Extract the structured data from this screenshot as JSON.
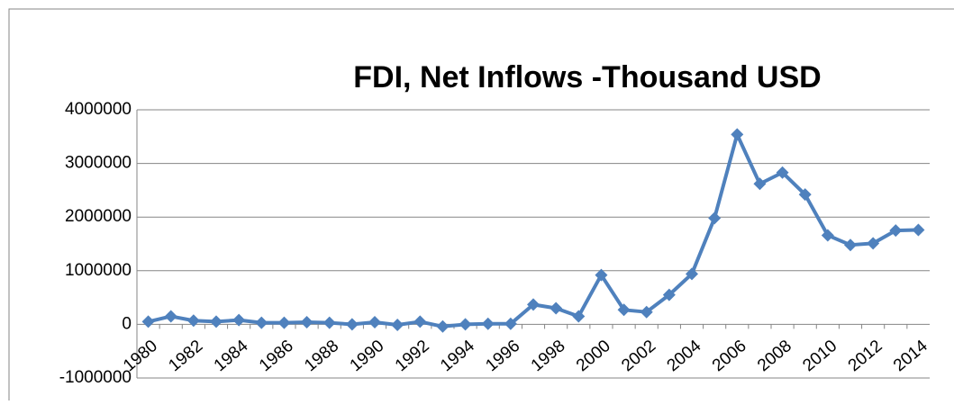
{
  "chart_data": {
    "type": "line",
    "title": "FDI, Net Inflows -Thousand USD",
    "categories": [
      "1980",
      null,
      "1982",
      null,
      "1984",
      null,
      "1986",
      null,
      "1988",
      null,
      "1990",
      null,
      "1992",
      null,
      "1994",
      null,
      "1996",
      null,
      "1998",
      null,
      "2000",
      null,
      "2002",
      null,
      "2004",
      null,
      "2006",
      null,
      "2008",
      null,
      "2010",
      null,
      "2012",
      null,
      "2014"
    ],
    "series": [
      {
        "color": "#4f81bd",
        "values": [
          50000,
          150000,
          70000,
          50000,
          80000,
          30000,
          30000,
          40000,
          30000,
          0,
          40000,
          -10000,
          50000,
          -40000,
          0,
          10000,
          10000,
          370000,
          300000,
          150000,
          920000,
          270000,
          230000,
          550000,
          940000,
          1980000,
          3540000,
          2620000,
          2830000,
          2420000,
          1660000,
          1480000,
          1510000,
          1750000,
          1760000
        ]
      }
    ],
    "ylim": [
      -1000000,
      4000000
    ],
    "yticks": [
      -1000000,
      0,
      1000000,
      2000000,
      3000000,
      4000000
    ],
    "grid": true
  }
}
